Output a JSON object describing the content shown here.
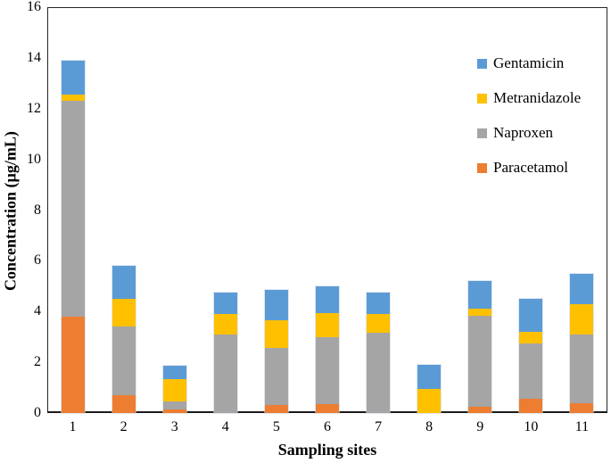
{
  "chart_data": {
    "type": "bar",
    "stacked": true,
    "title": "",
    "xlabel": "Sampling sites",
    "ylabel": "Concentration (µg/mL)",
    "ylim": [
      0,
      16
    ],
    "yticks": [
      0,
      2,
      4,
      6,
      8,
      10,
      12,
      14,
      16
    ],
    "grid": false,
    "legend_position": "top-right-inside",
    "categories": [
      "1",
      "2",
      "3",
      "4",
      "5",
      "6",
      "7",
      "8",
      "9",
      "10",
      "11"
    ],
    "series": [
      {
        "name": "Paracetamol",
        "color": "#ED7D31",
        "values": [
          3.8,
          0.7,
          0.15,
          0,
          0.3,
          0.35,
          0,
          0,
          0.25,
          0.55,
          0.4
        ]
      },
      {
        "name": "Naproxen",
        "color": "#A5A5A5",
        "values": [
          8.5,
          2.7,
          0.3,
          3.1,
          2.25,
          2.65,
          3.15,
          0,
          3.6,
          2.2,
          2.7
        ]
      },
      {
        "name": "Metranidazole",
        "color": "#FFC000",
        "values": [
          0.25,
          1.1,
          0.9,
          0.8,
          1.1,
          0.95,
          0.75,
          0.95,
          0.25,
          0.45,
          1.2
        ]
      },
      {
        "name": "Gentamicin",
        "color": "#5B9BD5",
        "values": [
          1.35,
          1.3,
          0.5,
          0.85,
          1.2,
          1.05,
          0.85,
          0.95,
          1.1,
          1.3,
          1.2
        ]
      }
    ],
    "legend_order": [
      "Gentamicin",
      "Metranidazole",
      "Naproxen",
      "Paracetamol"
    ],
    "totals": [
      13.9,
      5.8,
      1.85,
      4.75,
      4.85,
      5.0,
      4.75,
      1.9,
      5.2,
      4.5,
      5.5
    ]
  },
  "layout_hints": {
    "axis_color": "#262626",
    "text_color": "#000000"
  }
}
